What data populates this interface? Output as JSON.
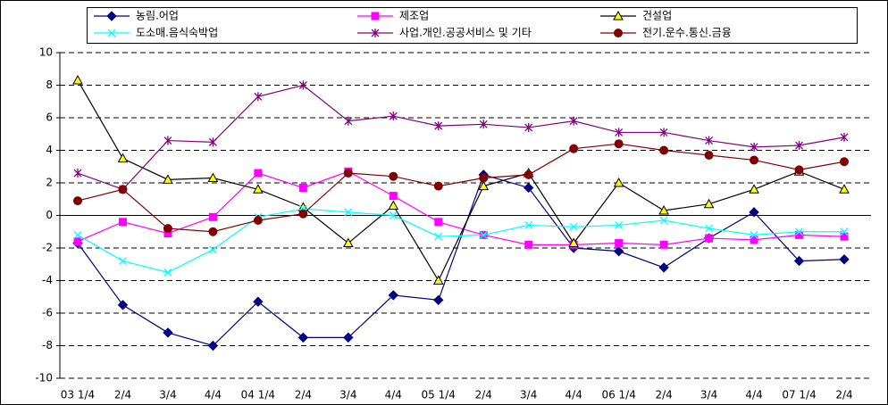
{
  "chart_data": {
    "type": "line",
    "categories": [
      "03 1/4",
      "2/4",
      "3/4",
      "4/4",
      "04 1/4",
      "2/4",
      "3/4",
      "4/4",
      "05 1/4",
      "2/4",
      "3/4",
      "4/4",
      "06 1/4",
      "2/4",
      "3/4",
      "4/4",
      "07 1/4",
      "2/4"
    ],
    "series": [
      {
        "name": "농림.어업",
        "color": "#000080",
        "marker": "diamond",
        "values": [
          -1.7,
          -5.5,
          -7.2,
          -8.0,
          -5.3,
          -7.5,
          -7.5,
          -4.9,
          -5.2,
          2.5,
          1.7,
          -2.0,
          -2.2,
          -3.2,
          -1.4,
          0.2,
          -2.8,
          -2.7
        ]
      },
      {
        "name": "제조업",
        "color": "#ff00ff",
        "marker": "square",
        "values": [
          -1.6,
          -0.4,
          -1.1,
          -0.1,
          2.6,
          1.7,
          2.7,
          1.2,
          -0.4,
          -1.2,
          -1.8,
          -1.8,
          -1.7,
          -1.8,
          -1.4,
          -1.5,
          -1.2,
          -1.3
        ]
      },
      {
        "name": "건설업",
        "color": "#000000",
        "marker": "triangle",
        "marker_fill": "#ffff00",
        "values": [
          8.3,
          3.5,
          2.2,
          2.3,
          1.6,
          0.5,
          -1.7,
          0.6,
          -4.0,
          1.8,
          2.6,
          -1.7,
          2.0,
          0.3,
          0.7,
          1.6,
          2.7,
          1.6
        ]
      },
      {
        "name": "도소매.음식숙박업",
        "color": "#00ffff",
        "marker": "x",
        "values": [
          -1.2,
          -2.8,
          -3.5,
          -2.1,
          -0.1,
          0.4,
          0.2,
          0.0,
          -1.3,
          -1.2,
          -0.6,
          -0.7,
          -0.6,
          -0.3,
          -0.8,
          -1.2,
          -1.0,
          -1.0
        ]
      },
      {
        "name": "사업.개인.공공서비스 및 기타",
        "color": "#800080",
        "marker": "star",
        "values": [
          2.6,
          1.6,
          4.6,
          4.5,
          7.3,
          8.0,
          5.8,
          6.1,
          5.5,
          5.6,
          5.4,
          5.8,
          5.1,
          5.1,
          4.6,
          4.2,
          4.3,
          4.8
        ]
      },
      {
        "name": "전기.운수.통신.금융",
        "color": "#800000",
        "marker": "circle",
        "values": [
          0.9,
          1.6,
          -0.8,
          -1.0,
          -0.3,
          0.1,
          2.6,
          2.4,
          1.8,
          2.3,
          2.5,
          4.1,
          4.4,
          4.0,
          3.7,
          3.4,
          2.8,
          3.3
        ]
      }
    ],
    "ylim": [
      -10,
      10
    ],
    "yticks": [
      -10,
      -8,
      -6,
      -4,
      -2,
      0,
      2,
      4,
      6,
      8,
      10
    ],
    "grid": true
  }
}
